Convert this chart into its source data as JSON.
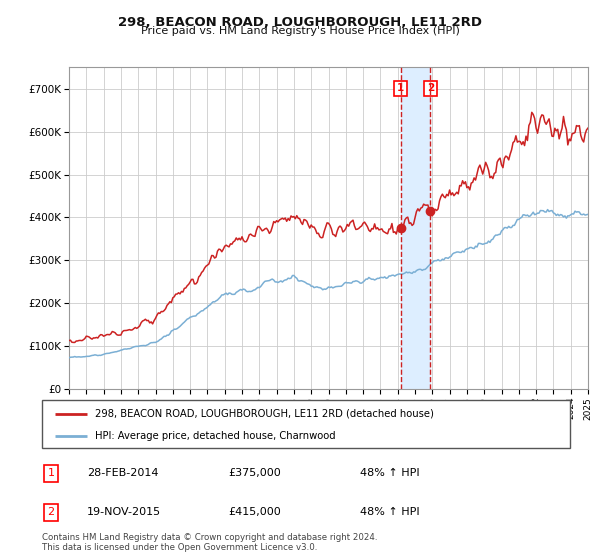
{
  "title": "298, BEACON ROAD, LOUGHBOROUGH, LE11 2RD",
  "subtitle": "Price paid vs. HM Land Registry's House Price Index (HPI)",
  "legend_line1": "298, BEACON ROAD, LOUGHBOROUGH, LE11 2RD (detached house)",
  "legend_line2": "HPI: Average price, detached house, Charnwood",
  "transaction1_date": "28-FEB-2014",
  "transaction1_price": 375000,
  "transaction1_hpi": "48% ↑ HPI",
  "transaction2_date": "19-NOV-2015",
  "transaction2_price": 415000,
  "transaction2_hpi": "48% ↑ HPI",
  "footer": "Contains HM Land Registry data © Crown copyright and database right 2024.\nThis data is licensed under the Open Government Licence v3.0.",
  "hpi_color": "#7bafd4",
  "property_color": "#cc2222",
  "marker_color": "#cc2222",
  "vline_color": "#cc2222",
  "vspan_color": "#ddeeff",
  "grid_color": "#cccccc",
  "background_color": "#ffffff",
  "ylim": [
    0,
    750000
  ],
  "xstart_year": 1995,
  "xend_year": 2025,
  "transaction1_x": 2014.162,
  "transaction2_x": 2015.885,
  "t1_price": 375000,
  "t2_price": 415000
}
